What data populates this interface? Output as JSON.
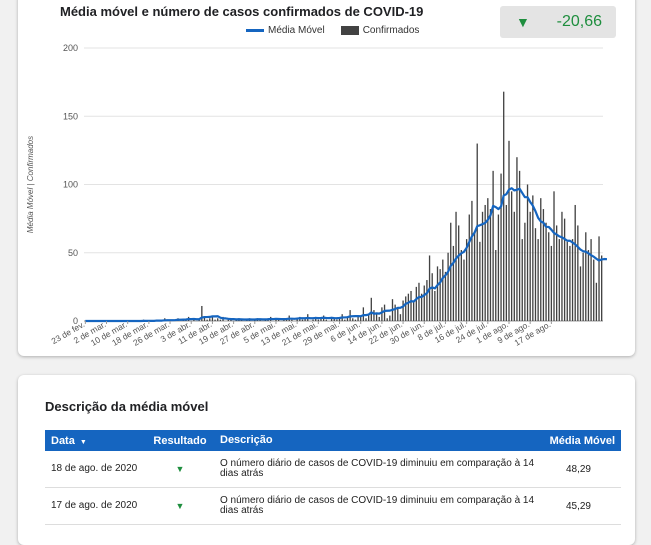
{
  "chart": {
    "title": "Média móvel e número de casos confirmados de COVID-19",
    "kpi_arrow": "▼",
    "kpi_value": "-20,66",
    "kpi_color": "#1e8e3e",
    "legend": {
      "line_label": "Média Móvel",
      "bar_label": "Confirmados"
    }
  },
  "chart_data": {
    "type": "bar",
    "ylabel": "Média Móvel | Confirmados",
    "ylim": [
      0,
      200
    ],
    "yticks": [
      0,
      50,
      100,
      150,
      200
    ],
    "grid": true,
    "legend_position": "top",
    "xtick_labels": [
      "23 de fev.",
      "2 de mar.",
      "10 de mar.",
      "18 de mar.",
      "26 de mar.",
      "3 de abr.",
      "11 de abr.",
      "19 de abr.",
      "27 de abr.",
      "5 de mai.",
      "13 de mai.",
      "21 de mai.",
      "29 de mai.",
      "6 de jun.",
      "14 de jun.",
      "22 de jun.",
      "30 de jun.",
      "8 de jul.",
      "16 de jul.",
      "24 de jul.",
      "1 de ago.",
      "9 de ago.",
      "17 de ago."
    ],
    "series": [
      {
        "name": "Confirmados",
        "type": "bar",
        "color": "#424242",
        "values": [
          0,
          0,
          0,
          0,
          0,
          0,
          0,
          0,
          0,
          0,
          0,
          0,
          0,
          0,
          0,
          0,
          0,
          0,
          0,
          0,
          0,
          0,
          1,
          0,
          0,
          0,
          0,
          1,
          0,
          0,
          2,
          1,
          0,
          0,
          1,
          2,
          0,
          1,
          1,
          3,
          0,
          2,
          0,
          1,
          11,
          3,
          1,
          2,
          4,
          1,
          2,
          1,
          3,
          0,
          1,
          2,
          0,
          1,
          2,
          1,
          0,
          1,
          2,
          0,
          1,
          2,
          1,
          0,
          1,
          2,
          3,
          0,
          2,
          1,
          0,
          1,
          2,
          4,
          1,
          0,
          2,
          3,
          1,
          2,
          5,
          0,
          1,
          3,
          1,
          2,
          4,
          1,
          0,
          3,
          2,
          1,
          2,
          5,
          1,
          3,
          8,
          2,
          1,
          4,
          3,
          10,
          2,
          5,
          17,
          8,
          6,
          3,
          10,
          12,
          2,
          4,
          16,
          12,
          9,
          5,
          15,
          18,
          20,
          22,
          14,
          25,
          28,
          20,
          26,
          30,
          48,
          35,
          22,
          40,
          38,
          45,
          36,
          50,
          72,
          55,
          80,
          70,
          52,
          45,
          60,
          78,
          88,
          65,
          130,
          58,
          80,
          85,
          90,
          82,
          110,
          52,
          78,
          108,
          168,
          85,
          132,
          95,
          80,
          120,
          110,
          60,
          72,
          100,
          80,
          92,
          68,
          60,
          90,
          82,
          72,
          65,
          55,
          95,
          70,
          60,
          80,
          75,
          58,
          55,
          60,
          85,
          70,
          40,
          50,
          65,
          52,
          60,
          45,
          28,
          62,
          48
        ]
      },
      {
        "name": "Média Móvel",
        "type": "line",
        "color": "#1565c0",
        "values": [
          0,
          0,
          0,
          0,
          0,
          0,
          0,
          0,
          0,
          0,
          0,
          0,
          0,
          0,
          0,
          0,
          0,
          0,
          0,
          0,
          0,
          0,
          0.1,
          0.1,
          0.1,
          0.1,
          0.1,
          0.3,
          0.3,
          0.3,
          0.5,
          0.6,
          0.6,
          0.6,
          0.7,
          0.9,
          0.9,
          1,
          1.1,
          1.4,
          1.4,
          1.5,
          1.3,
          1.3,
          2.5,
          2.9,
          2.9,
          3,
          3.4,
          3.4,
          3.5,
          2.4,
          1.9,
          1.9,
          1.6,
          1.4,
          1.4,
          1.2,
          1.3,
          1.2,
          1.1,
          1.1,
          1.2,
          1.1,
          1.1,
          1.3,
          1.3,
          1.2,
          1.2,
          1.3,
          1.5,
          1.4,
          1.6,
          1.5,
          1.4,
          1.4,
          1.5,
          1.7,
          1.7,
          1.6,
          1.8,
          2,
          2,
          2,
          2.2,
          2,
          2,
          2.2,
          2.1,
          2.2,
          2.4,
          2.2,
          2.1,
          2.3,
          2.1,
          2,
          2.2,
          2.6,
          2.6,
          2.8,
          3.4,
          3.5,
          3.6,
          3.6,
          3.5,
          4.3,
          4.3,
          4.7,
          6.3,
          5.3,
          5.6,
          5.4,
          6.3,
          7.4,
          7.5,
          7.6,
          8.2,
          8.8,
          9.6,
          9.7,
          10.6,
          12.6,
          13.4,
          14.6,
          14.2,
          16.1,
          17.6,
          17.6,
          19,
          20.4,
          23.7,
          24.6,
          23.9,
          26.3,
          28.3,
          31.5,
          33.5,
          36.1,
          40.4,
          42.6,
          45.8,
          47.9,
          49.6,
          50.7,
          53.6,
          57.9,
          62,
          64.7,
          69.5,
          70.1,
          71,
          71.9,
          74.1,
          77.4,
          84.3,
          83.4,
          82,
          83.9,
          91.9,
          92.9,
          96.2,
          97.3,
          95.7,
          96.1,
          96.9,
          93.8,
          90.7,
          90.7,
          87.2,
          84.5,
          80.4,
          75.6,
          73,
          72,
          69,
          68.9,
          66.9,
          64.5,
          63.3,
          62,
          61.3,
          60.1,
          58.8,
          58.8,
          57.5,
          56.1,
          54.3,
          52.3,
          51.1,
          50.8,
          49.6,
          48.2,
          47.1,
          45.6,
          44.3,
          45.1,
          45.4,
          45.3
        ]
      }
    ]
  },
  "table": {
    "title": "Descrição da média móvel",
    "sort_icon": "▼",
    "headers": {
      "date": "Data",
      "result": "Resultado",
      "description": "Descrição",
      "moving_avg": "Média Móvel"
    },
    "rows": [
      {
        "date": "18 de ago. de 2020",
        "result": "▼",
        "description": "O número diário de casos de COVID-19 diminuiu em comparação à 14 dias atrás",
        "moving_avg": "48,29"
      },
      {
        "date": "17 de ago. de 2020",
        "result": "▼",
        "description": "O número diário de casos de COVID-19 diminuiu em comparação à 14 dias atrás",
        "moving_avg": "45,29"
      }
    ]
  }
}
